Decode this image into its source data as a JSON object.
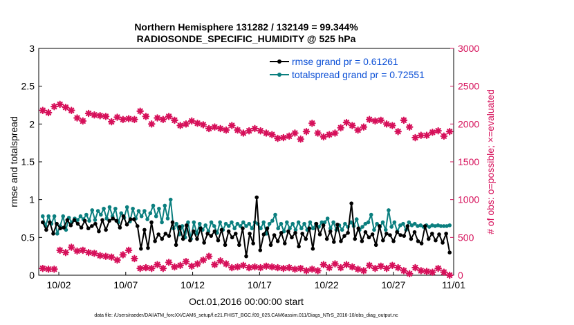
{
  "chart_data": {
    "type": "line",
    "title_line1": "Northern Hemisphere 131282 / 132149 = 99.344%",
    "title_line2": "RADIOSONDE_SPECIFIC_HUMIDITY @ 525 hPa",
    "xlabel": "Oct.01,2016 00:00:00 start",
    "ylabel_left": "rmse and totalspread",
    "ylabel_right": "# of obs: o=possible; ×=evaluated",
    "footnote": "data file: /Users/raeder/DAI/ATM_forcXX/CAM6_setup/f.e21.FHIST_BGC.f09_025.CAM6assim.011/Diags_NTrS_2016-10/obs_diag_output.nc",
    "xlim": [
      0.5,
      31.5
    ],
    "x_ticks": [
      {
        "x": 2,
        "label": "10/02"
      },
      {
        "x": 7,
        "label": "10/07"
      },
      {
        "x": 12,
        "label": "10/12"
      },
      {
        "x": 17,
        "label": "10/17"
      },
      {
        "x": 22,
        "label": "10/22"
      },
      {
        "x": 27,
        "label": "10/27"
      },
      {
        "x": 32,
        "label": "11/01"
      }
    ],
    "ylim_left": [
      0,
      3
    ],
    "y_ticks_left": [
      "0",
      "0.5",
      "1",
      "1.5",
      "2",
      "2.5",
      "3"
    ],
    "ylim_right": [
      0,
      3000
    ],
    "y_ticks_right": [
      "0",
      "500",
      "1000",
      "1500",
      "2000",
      "2500",
      "3000"
    ],
    "grid": false,
    "legend_position": "top-right",
    "colors": {
      "rmse": "#000000",
      "spread": "#0b7f7f",
      "obs": "#d6105a",
      "legend_text": "#0b4fd6"
    },
    "series": [
      {
        "name": "rmse grand pr = 0.61261",
        "axis": "left",
        "color": "#000000",
        "values": [
          0.7,
          0.6,
          0.7,
          0.55,
          0.68,
          0.62,
          0.63,
          0.73,
          0.66,
          0.73,
          0.68,
          0.63,
          0.72,
          0.62,
          0.65,
          0.68,
          0.58,
          0.73,
          0.6,
          0.72,
          0.75,
          0.72,
          0.63,
          0.78,
          0.67,
          0.74,
          0.74,
          0.65,
          0.35,
          0.6,
          0.36,
          0.7,
          0.45,
          0.54,
          0.48,
          0.55,
          0.52,
          0.7,
          0.4,
          0.64,
          0.48,
          0.66,
          0.46,
          0.58,
          0.48,
          0.62,
          0.43,
          0.55,
          0.52,
          0.58,
          0.46,
          0.6,
          0.4,
          0.58,
          0.5,
          0.55,
          0.4,
          0.62,
          0.25,
          0.55,
          0.42,
          1.03,
          0.33,
          0.54,
          0.62,
          0.4,
          0.53,
          0.45,
          0.56,
          0.42,
          0.58,
          0.5,
          0.56,
          0.38,
          0.55,
          0.48,
          0.62,
          0.35,
          0.68,
          0.54,
          0.66,
          0.48,
          0.58,
          0.44,
          0.67,
          0.45,
          0.52,
          0.56,
          0.95,
          0.48,
          0.62,
          0.45,
          0.57,
          0.5,
          0.54,
          0.4,
          0.65,
          0.46,
          0.55,
          0.53,
          0.45,
          0.57,
          0.53,
          0.52,
          0.65,
          0.48,
          0.57,
          0.45,
          0.42,
          0.65,
          0.48,
          0.55,
          0.46,
          0.54,
          0.43,
          0.55,
          0.3
        ]
      },
      {
        "name": "totalspread grand pr = 0.72551",
        "axis": "left",
        "color": "#0b7f7f",
        "values": [
          0.78,
          0.65,
          0.78,
          0.68,
          0.78,
          0.55,
          0.65,
          0.78,
          0.6,
          0.76,
          0.7,
          0.75,
          0.73,
          0.78,
          0.74,
          0.8,
          0.72,
          0.86,
          0.73,
          0.85,
          0.8,
          0.88,
          0.75,
          0.9,
          0.78,
          0.88,
          0.7,
          0.82,
          0.76,
          0.9,
          0.71,
          0.88,
          0.75,
          0.85,
          0.78,
          0.85,
          0.74,
          0.82,
          0.92,
          0.78,
          0.88,
          0.7,
          0.92,
          0.75,
          1.0,
          0.62,
          0.68,
          0.54,
          0.65,
          0.5,
          0.7,
          0.48,
          0.7,
          0.55,
          0.68,
          0.6,
          0.66,
          0.58,
          0.7,
          0.65,
          0.56,
          0.7,
          0.6,
          0.68,
          0.65,
          0.7,
          0.62,
          0.68,
          0.65,
          0.7,
          0.65,
          0.68,
          0.62,
          0.7,
          0.68,
          0.62,
          0.7,
          0.55,
          0.68,
          0.72,
          0.8,
          0.62,
          0.68,
          0.58,
          0.7,
          0.62,
          0.68,
          0.6,
          0.7,
          0.62,
          0.68,
          0.6,
          0.7,
          0.62,
          0.68,
          0.64,
          0.7,
          0.7,
          0.75,
          0.62,
          0.7,
          0.6,
          0.66,
          0.6,
          0.68,
          0.64,
          0.7,
          0.65,
          0.74,
          0.6,
          0.64,
          0.68,
          0.7,
          0.8,
          0.6,
          0.68,
          0.64,
          0.7,
          0.6,
          0.86,
          0.64,
          0.7,
          0.58,
          0.66,
          0.68,
          0.6,
          0.7,
          0.66,
          0.68,
          0.65,
          0.66,
          0.64,
          0.66,
          0.64,
          0.66,
          0.65,
          0.66,
          0.65,
          0.65,
          0.65,
          0.66
        ]
      },
      {
        "name": "# of obs possible",
        "axis": "right",
        "color": "#d6105a",
        "values": [
          2180,
          2150,
          2230,
          2260,
          2220,
          2180,
          2080,
          2040,
          2140,
          2120,
          2110,
          2100,
          2030,
          2090,
          2060,
          2070,
          2060,
          2170,
          2100,
          2000,
          2080,
          2060,
          2100,
          2050,
          1980,
          2000,
          2040,
          2010,
          1990,
          1940,
          1960,
          1940,
          1920,
          1980,
          1920,
          1880,
          1910,
          1940,
          1910,
          1880,
          1860,
          1810,
          1820,
          1840,
          1880,
          1800,
          1900,
          2010,
          1880,
          1830,
          1860,
          1880,
          1950,
          2020,
          1980,
          1920,
          1960,
          2060,
          2040,
          2050,
          2000,
          1980,
          1900,
          2050,
          1960,
          1820,
          1850,
          1850,
          1890,
          1910,
          1840,
          1900
        ]
      },
      {
        "name": "# of obs evaluated",
        "axis": "right",
        "color": "#d6105a",
        "values": [
          90,
          80,
          80,
          330,
          300,
          370,
          320,
          330,
          300,
          290,
          260,
          250,
          240,
          200,
          270,
          330,
          220,
          90,
          100,
          90,
          140,
          90,
          170,
          110,
          130,
          180,
          120,
          150,
          200,
          250,
          140,
          190,
          150,
          100,
          110,
          130,
          100,
          110,
          100,
          120,
          110,
          100,
          90,
          100,
          80,
          90,
          60,
          80,
          60,
          140,
          100,
          150,
          100,
          140,
          110,
          80,
          60,
          130,
          90,
          120,
          90,
          130,
          100,
          60,
          20,
          100,
          60,
          50,
          40,
          90,
          40,
          0
        ]
      }
    ]
  }
}
